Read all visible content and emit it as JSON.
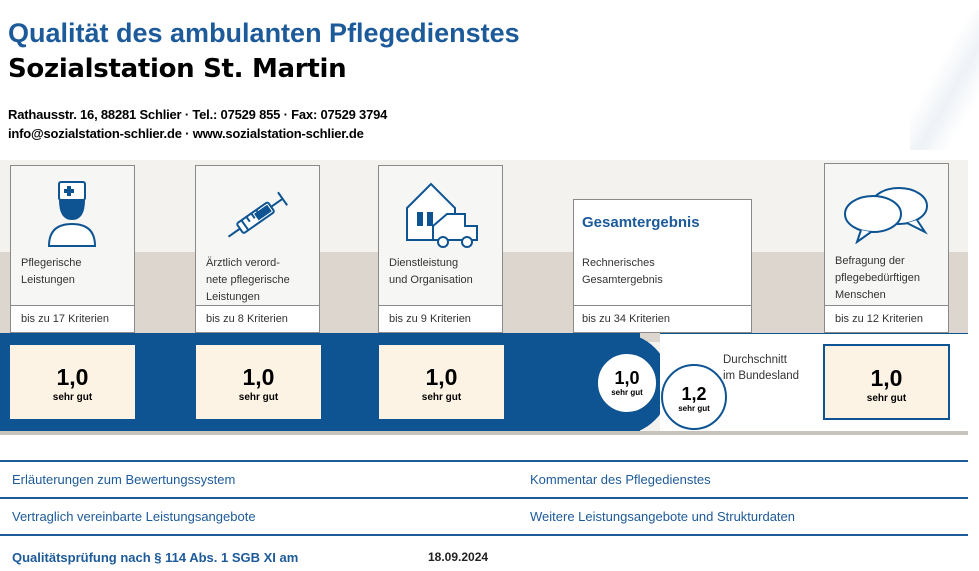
{
  "header": {
    "title": "Qualität des ambulanten Pflegedienstes",
    "name": "Sozialstation St. Martin",
    "address_line": "Rathausstr. 16, 88281 Schlier · Tel.: 07529 855 · Fax: 07529 3794",
    "contact_line": "info@sozialstation-schlier.de · www.sozialstation-schlier.de"
  },
  "categories": [
    {
      "label": "Pflegerische\nLeistungen",
      "criteria": "bis zu 17 Kriterien",
      "grade": "1,0",
      "grade_text": "sehr gut",
      "icon": "nurse-icon"
    },
    {
      "label": "Ärztlich verord-\nnete pflegerische\nLeistungen",
      "criteria": "bis zu 8 Kriterien",
      "grade": "1,0",
      "grade_text": "sehr gut",
      "icon": "syringe-icon"
    },
    {
      "label": "Dienstleistung\nund Organisation",
      "criteria": "bis zu 9 Kriterien",
      "grade": "1,0",
      "grade_text": "sehr gut",
      "icon": "house-car-icon"
    },
    {
      "label": "Befragung der\npflegebedürftigen\nMenschen",
      "criteria": "bis zu 12 Kriterien",
      "grade": "1,0",
      "grade_text": "sehr gut",
      "icon": "speech-bubbles-icon"
    }
  ],
  "gesamt": {
    "heading": "Gesamtergebnis",
    "label": "Rechnerisches\nGesamtergebnis",
    "criteria": "bis zu 34 Kriterien",
    "grade": "1,0",
    "grade_text": "sehr gut",
    "average_grade": "1,2",
    "average_text": "sehr gut",
    "average_label": "Durchschnitt\nim Bundesland"
  },
  "links": {
    "explanations": "Erläuterungen zum Bewertungssystem",
    "comment": "Kommentar des Pflegedienstes",
    "contracted": "Vertraglich vereinbarte Leistungsangebote",
    "further": "Weitere Leistungsangebote und Strukturdaten"
  },
  "footer": {
    "label": "Qualitätsprüfung nach § 114 Abs. 1 SGB XI am",
    "date": "18.09.2024"
  },
  "colors": {
    "primary_blue": "#0e5492",
    "heading_blue": "#1d5a9a",
    "grade_bg": "#fdf3e4"
  }
}
